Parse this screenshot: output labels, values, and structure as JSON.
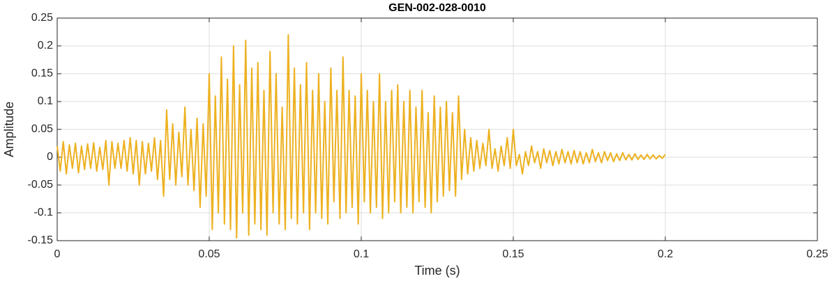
{
  "chart_data": {
    "type": "line",
    "title": "GEN-002-028-0010",
    "xlabel": "Time (s)",
    "ylabel": "Amplitude",
    "color": "#EDB120",
    "grid": true,
    "xlim": [
      0,
      0.25
    ],
    "xticks": [
      0,
      0.05,
      0.1,
      0.15,
      0.2,
      0.25
    ],
    "ylim": [
      -0.15,
      0.25
    ],
    "yticks": [
      -0.15,
      -0.1,
      -0.05,
      0,
      0.05,
      0.1,
      0.15,
      0.2,
      0.25
    ],
    "x": [
      0,
      0.001,
      0.002,
      0.003,
      0.004,
      0.005,
      0.006,
      0.007,
      0.008,
      0.009,
      0.01,
      0.011,
      0.012,
      0.013,
      0.014,
      0.015,
      0.016,
      0.017,
      0.018,
      0.019,
      0.02,
      0.021,
      0.022,
      0.023,
      0.024,
      0.025,
      0.026,
      0.027,
      0.028,
      0.029,
      0.03,
      0.031,
      0.032,
      0.033,
      0.034,
      0.035,
      0.036,
      0.037,
      0.038,
      0.039,
      0.04,
      0.041,
      0.042,
      0.043,
      0.044,
      0.045,
      0.046,
      0.047,
      0.048,
      0.049,
      0.05,
      0.051,
      0.052,
      0.053,
      0.054,
      0.055,
      0.056,
      0.057,
      0.058,
      0.059,
      0.06,
      0.061,
      0.062,
      0.063,
      0.064,
      0.065,
      0.066,
      0.067,
      0.068,
      0.069,
      0.07,
      0.071,
      0.072,
      0.073,
      0.074,
      0.075,
      0.076,
      0.077,
      0.078,
      0.079,
      0.08,
      0.081,
      0.082,
      0.083,
      0.084,
      0.085,
      0.086,
      0.087,
      0.088,
      0.089,
      0.09,
      0.091,
      0.092,
      0.093,
      0.094,
      0.095,
      0.096,
      0.097,
      0.098,
      0.099,
      0.1,
      0.101,
      0.102,
      0.103,
      0.104,
      0.105,
      0.106,
      0.107,
      0.108,
      0.109,
      0.11,
      0.111,
      0.112,
      0.113,
      0.114,
      0.115,
      0.116,
      0.117,
      0.118,
      0.119,
      0.12,
      0.121,
      0.122,
      0.123,
      0.124,
      0.125,
      0.126,
      0.127,
      0.128,
      0.129,
      0.13,
      0.131,
      0.132,
      0.133,
      0.134,
      0.135,
      0.136,
      0.137,
      0.138,
      0.139,
      0.14,
      0.141,
      0.142,
      0.143,
      0.144,
      0.145,
      0.146,
      0.147,
      0.148,
      0.149,
      0.15,
      0.151,
      0.152,
      0.153,
      0.154,
      0.155,
      0.156,
      0.157,
      0.158,
      0.159,
      0.16,
      0.161,
      0.162,
      0.163,
      0.164,
      0.165,
      0.166,
      0.167,
      0.168,
      0.169,
      0.17,
      0.171,
      0.172,
      0.173,
      0.174,
      0.175,
      0.176,
      0.177,
      0.178,
      0.179,
      0.18,
      0.181,
      0.182,
      0.183,
      0.184,
      0.185,
      0.186,
      0.187,
      0.188,
      0.189,
      0.19,
      0.191,
      0.192,
      0.193,
      0.194,
      0.195,
      0.196,
      0.197,
      0.198,
      0.199,
      0.2
    ],
    "values": [
      0.02,
      -0.025,
      0.028,
      -0.03,
      0.022,
      -0.02,
      0.025,
      -0.028,
      0.02,
      -0.022,
      0.024,
      -0.02,
      0.026,
      -0.025,
      0.018,
      -0.022,
      0.03,
      -0.05,
      0.028,
      -0.02,
      0.025,
      -0.02,
      0.03,
      -0.025,
      0.035,
      -0.03,
      0.03,
      -0.05,
      0.028,
      -0.03,
      0.025,
      -0.025,
      0.035,
      -0.04,
      0.03,
      -0.07,
      0.085,
      -0.04,
      0.06,
      -0.05,
      0.045,
      -0.035,
      0.09,
      -0.05,
      0.05,
      -0.06,
      0.07,
      -0.09,
      0.06,
      -0.07,
      0.15,
      -0.13,
      0.11,
      -0.1,
      0.18,
      -0.12,
      0.14,
      -0.13,
      0.2,
      -0.145,
      0.13,
      -0.1,
      0.21,
      -0.14,
      0.16,
      -0.12,
      0.17,
      -0.13,
      0.12,
      -0.14,
      0.19,
      -0.1,
      0.15,
      -0.12,
      0.09,
      -0.13,
      0.22,
      -0.11,
      0.16,
      -0.12,
      0.13,
      -0.1,
      0.17,
      -0.13,
      0.12,
      -0.1,
      0.15,
      -0.11,
      0.1,
      -0.12,
      0.16,
      -0.08,
      0.12,
      -0.11,
      0.18,
      -0.1,
      0.12,
      -0.09,
      0.11,
      -0.12,
      0.15,
      -0.08,
      0.12,
      -0.1,
      0.1,
      -0.09,
      0.15,
      -0.11,
      0.1,
      -0.1,
      0.12,
      -0.08,
      0.13,
      -0.1,
      0.1,
      -0.09,
      0.12,
      -0.1,
      0.09,
      -0.08,
      0.12,
      -0.09,
      0.08,
      -0.1,
      0.11,
      -0.08,
      0.09,
      -0.07,
      0.1,
      -0.06,
      0.08,
      -0.07,
      0.11,
      -0.04,
      0.05,
      -0.03,
      0.035,
      -0.025,
      0.03,
      -0.02,
      0.025,
      -0.015,
      0.05,
      -0.02,
      0.015,
      -0.025,
      0.02,
      -0.015,
      0.035,
      -0.02,
      0.05,
      -0.015,
      0.005,
      -0.03,
      0.01,
      -0.015,
      0.02,
      -0.01,
      0.01,
      -0.02,
      0.015,
      -0.01,
      0.012,
      -0.015,
      0.01,
      -0.012,
      0.014,
      -0.01,
      0.01,
      -0.012,
      0.012,
      -0.01,
      0.01,
      -0.012,
      0.008,
      -0.01,
      0.014,
      -0.008,
      0.008,
      -0.01,
      0.01,
      -0.006,
      0.008,
      -0.008,
      0.006,
      -0.006,
      0.008,
      -0.005,
      0.005,
      -0.005,
      0.006,
      -0.004,
      0.004,
      -0.004,
      0.005,
      -0.003,
      0.004,
      -0.003,
      0.003,
      -0.002,
      0.005
    ]
  }
}
